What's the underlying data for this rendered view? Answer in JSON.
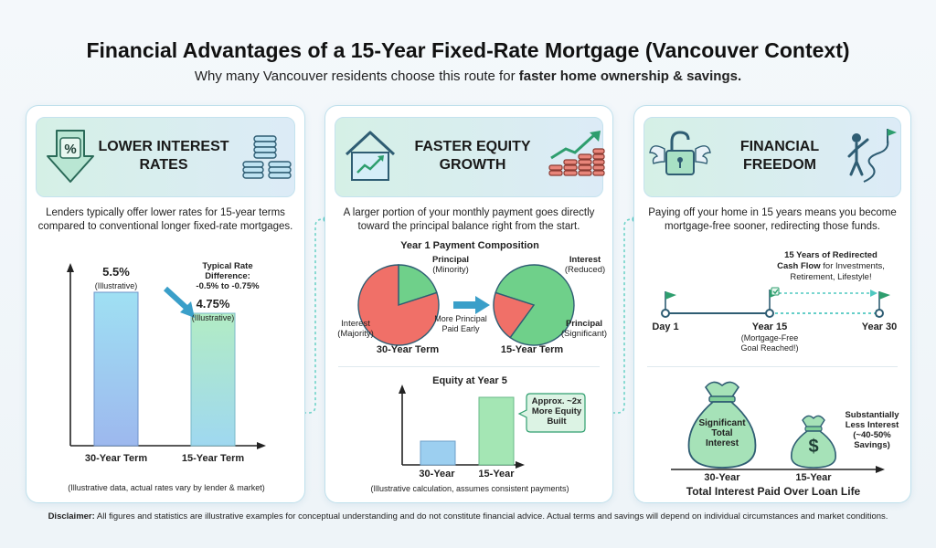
{
  "header": {
    "title": "Financial Advantages of a 15-Year Fixed-Rate Mortgage (Vancouver Context)",
    "subtitle_prefix": "Why many Vancouver residents choose this route for ",
    "subtitle_bold": "faster home ownership & savings."
  },
  "panel1": {
    "title_line1": "LOWER INTEREST",
    "title_line2": "RATES",
    "icon_left": "percent-down-arrow-icon",
    "icon_right": "coin-stacks-icon",
    "description": "Lenders typically offer lower rates for 15-year terms compared to conventional longer fixed-rate mortgages.",
    "rate30_value": "5.5%",
    "rate30_note": "(Illustrative)",
    "rate15_value": "4.75%",
    "rate15_note": "(Illustrative)",
    "diff_label_line1": "Typical Rate",
    "diff_label_line2": "Difference:",
    "diff_label_line3": "-0.5% to -0.75%",
    "x_label_30": "30-Year Term",
    "x_label_15": "15-Year Term",
    "footnote": "(Illustrative data, actual rates vary by lender & market)"
  },
  "panel2": {
    "title_line1": "FASTER EQUITY",
    "title_line2": "GROWTH",
    "icon_left": "house-chart-icon",
    "icon_right": "rising-coins-icon",
    "description": "A larger portion of your monthly payment goes directly toward the principal balance right from the start.",
    "pie_title": "Year 1 Payment Composition",
    "pie30_principal": "Principal",
    "pie30_principal_note": "(Minority)",
    "pie30_interest": "Interest",
    "pie30_interest_note": "(Majority)",
    "pie30_label": "30-Year Term",
    "pie15_interest": "Interest",
    "pie15_interest_note": "(Reduced)",
    "pie15_principal": "Principal",
    "pie15_principal_note": "(Significant)",
    "pie15_label": "15-Year Term",
    "arrow_note_line1": "More Principal",
    "arrow_note_line2": "Paid Early",
    "bar_title": "Equity at Year 5",
    "bar_label_30": "30-Year",
    "bar_label_15": "15-Year",
    "callout_line1": "Approx. ~2x",
    "callout_line2": "More Equity",
    "callout_line3": "Built",
    "footnote": "(Illustrative calculation, assumes consistent payments)"
  },
  "panel3": {
    "title_line1": "FINANCIAL",
    "title_line2": "FREEDOM",
    "icon_left": "winged-unlocked-padlock-icon",
    "icon_right": "person-flag-path-icon",
    "description": "Paying off your home in 15 years means you become mortgage-free sooner, redirecting those funds.",
    "redirect_line1": "15 Years of Redirected",
    "redirect_line2_bold": "Cash Flow",
    "redirect_line2_rest": " for Investments,",
    "redirect_line3": "Retirement, Lifestyle!",
    "day1": "Day 1",
    "year15": "Year 15",
    "year15_note_line1": "(Mortgage-Free",
    "year15_note_line2": "Goal Reached!)",
    "year30": "Year 30",
    "bag_big_line1": "Significant",
    "bag_big_line2": "Total",
    "bag_big_line3": "Interest",
    "bag_small_symbol": "$",
    "savings_line1": "Substantially",
    "savings_line2": "Less Interest",
    "savings_line3": "(~40-50%",
    "savings_line4": "Savings)",
    "x_label_30": "30-Year",
    "x_label_15": "15-Year",
    "chart_title": "Total Interest Paid Over Loan Life"
  },
  "disclaimer": {
    "bold": "Disclaimer:",
    "text": " All figures and statistics are illustrative examples for conceptual understanding and do not constitute financial advice. Actual terms and savings will depend on individual circumstances and market conditions."
  },
  "chart_data": [
    {
      "type": "bar",
      "categories": [
        "30-Year Term",
        "15-Year Term"
      ],
      "values": [
        5.5,
        4.75
      ],
      "ylabel": "",
      "xlabel": ""
    },
    {
      "type": "pie",
      "title": "Year 1 Payment Composition",
      "categories": [
        "Principal",
        "Interest"
      ],
      "series": [
        {
          "name": "30-Year Term",
          "values": [
            0.2,
            0.8
          ]
        },
        {
          "name": "15-Year Term",
          "values": [
            0.8,
            0.2
          ]
        }
      ]
    },
    {
      "type": "bar",
      "title": "Equity at Year 5",
      "categories": [
        "30-Year",
        "15-Year"
      ],
      "values": [
        1,
        2
      ]
    },
    {
      "type": "bar",
      "title": "Total Interest Paid Over Loan Life",
      "categories": [
        "30-Year",
        "15-Year"
      ],
      "values": [
        1,
        0.55
      ]
    }
  ],
  "colors": {
    "accent_teal": "#4fc8c0",
    "pie_red": "#f07068",
    "pie_green": "#6fd08a",
    "bag_green": "#a6e2b8",
    "bar_blue": "#9ad0f0",
    "bar_green": "#a4e6b4",
    "flag_green": "#2e9e6e"
  }
}
